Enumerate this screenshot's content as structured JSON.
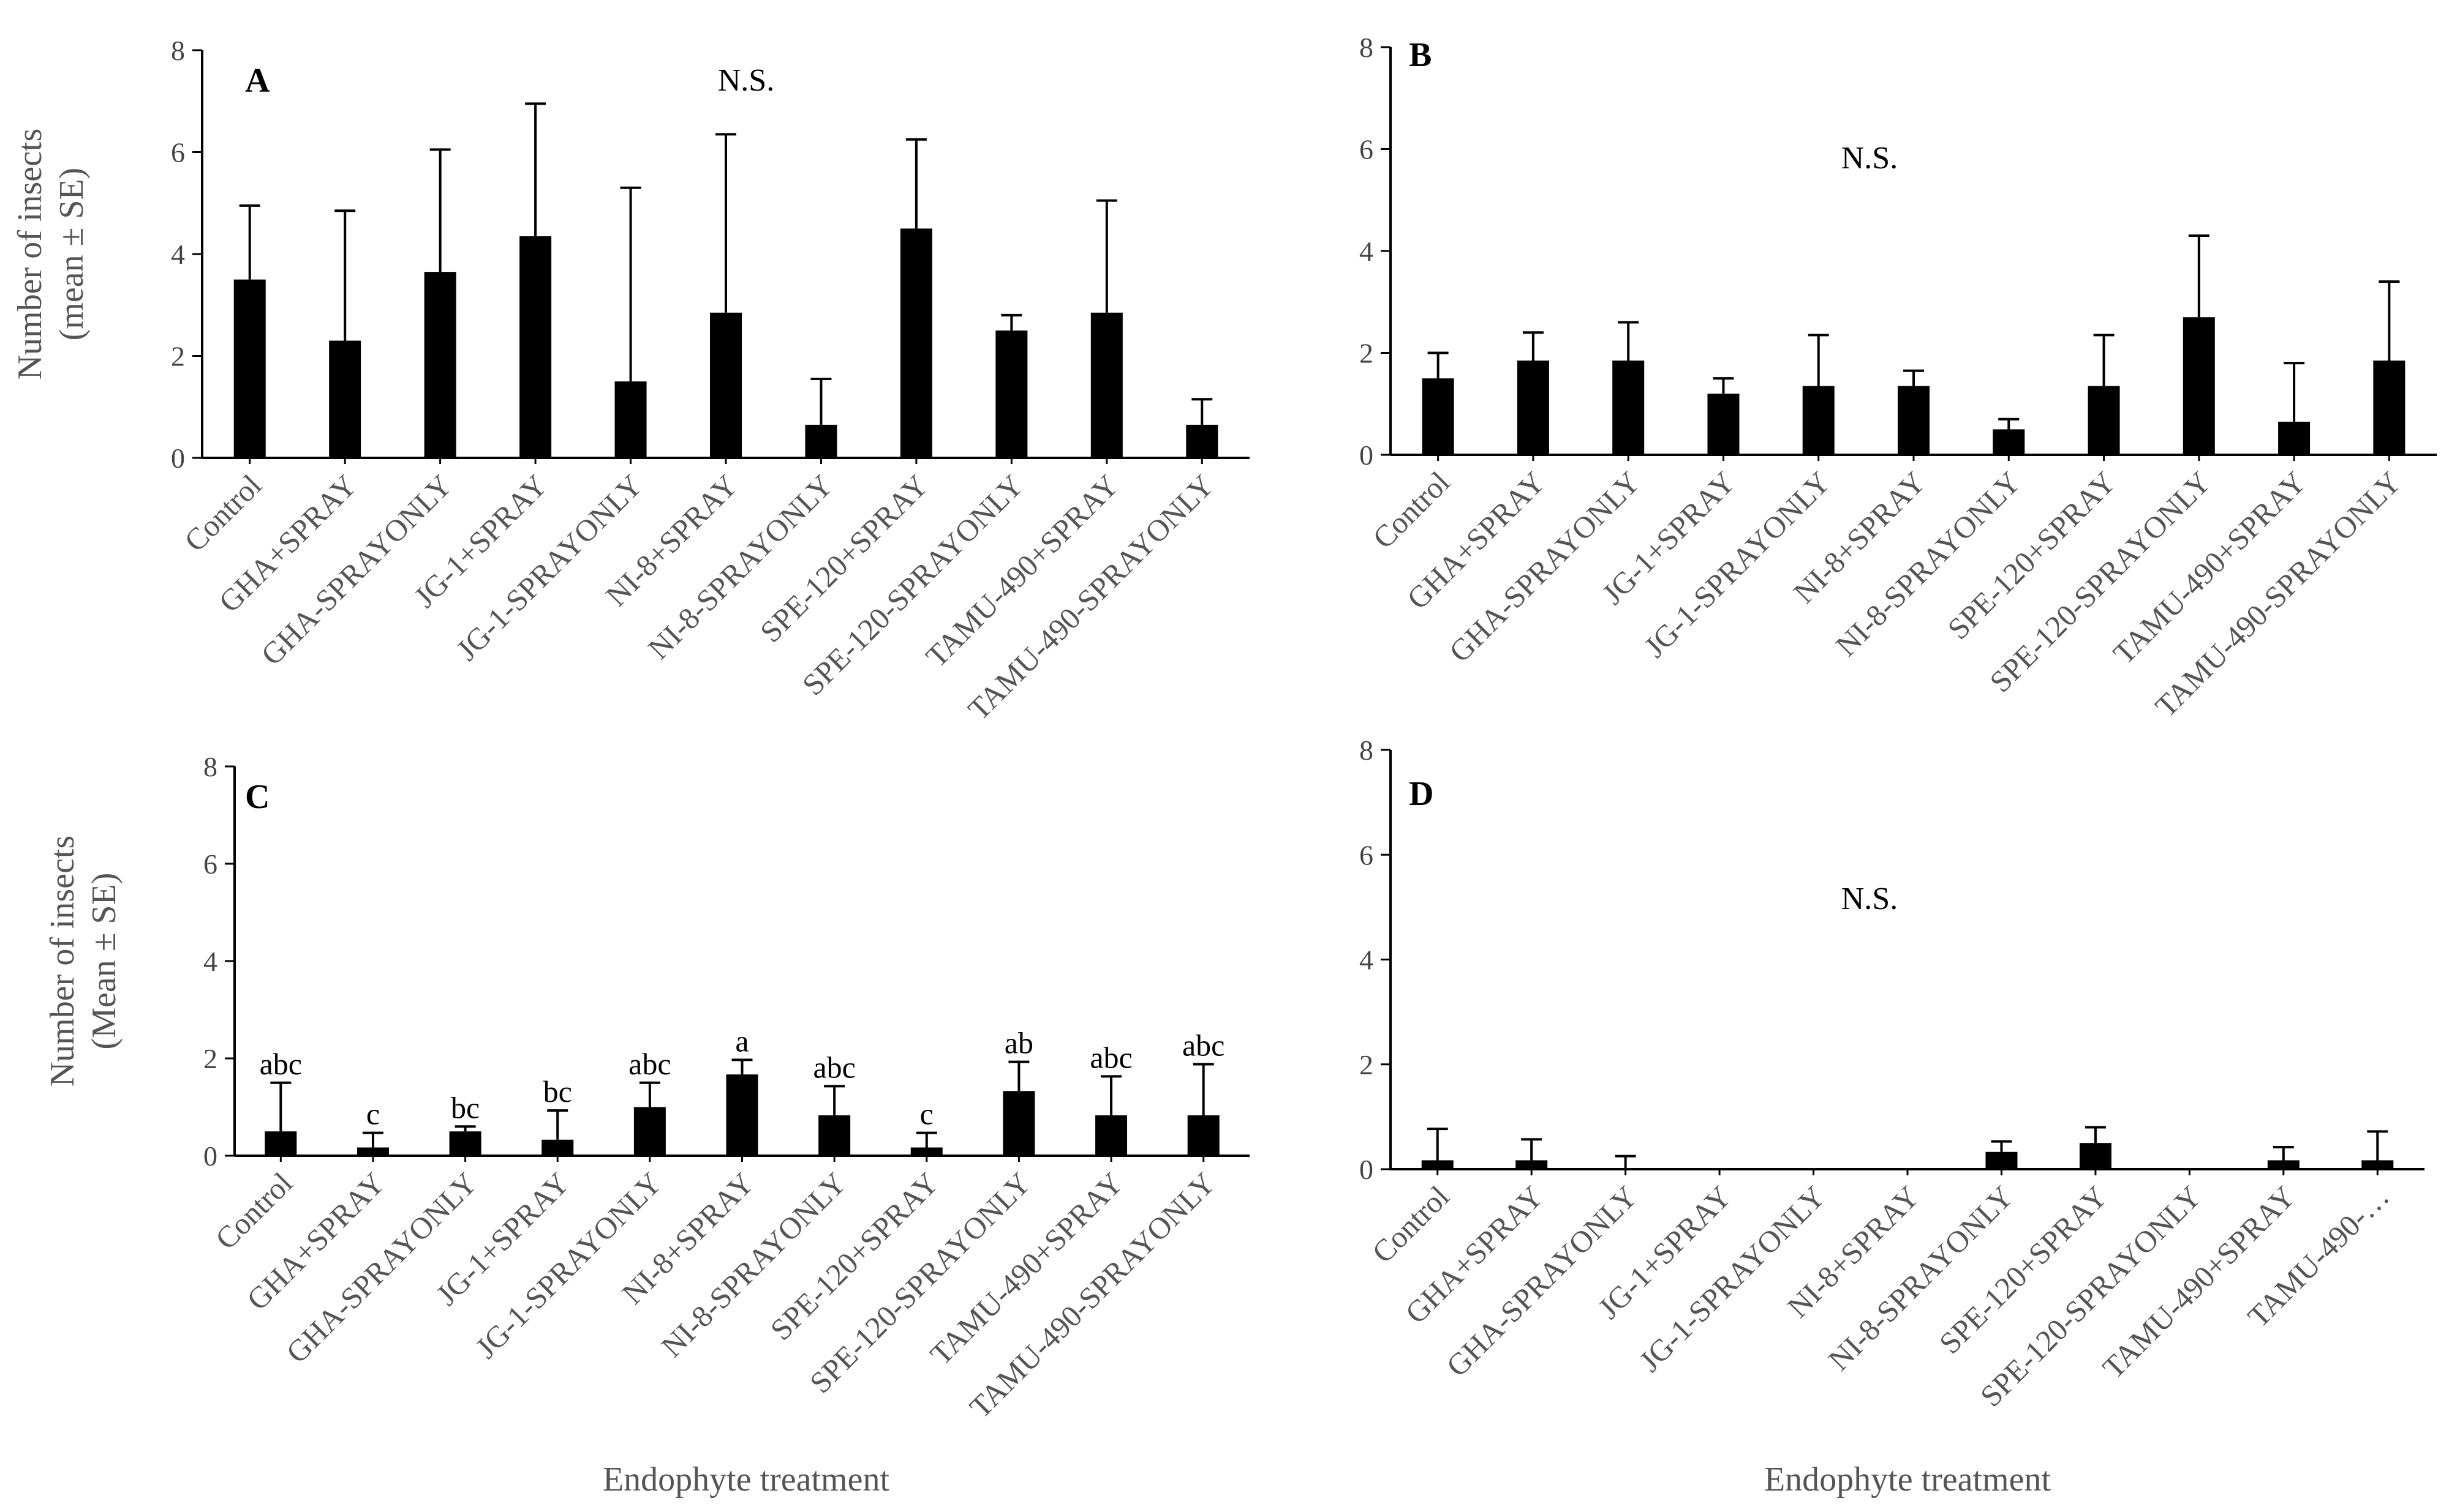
{
  "figure": {
    "panel_labels": [
      "A",
      "B",
      "C",
      "D"
    ]
  },
  "chart_data": [
    {
      "id": "A",
      "type": "bar",
      "title": "",
      "annotation": "N.S.",
      "xlabel": "",
      "ylabel": [
        "Number of insects",
        "(mean ± SE)"
      ],
      "ylim": [
        0,
        8
      ],
      "yticks": [
        0,
        2,
        4,
        6,
        8
      ],
      "categories": [
        "Control",
        "GHA+SPRAY",
        "GHA-SPRAYONLY",
        "JG-1+SPRAY",
        "JG-1-SPRAYONLY",
        "NI-8+SPRAY",
        "NI-8-SPRAYONLY",
        "SPE-120+SPRAY",
        "SPE-120-SPRAYONLY",
        "TAMU-490+SPRAY",
        "TAMU-490-SPRAYONLY"
      ],
      "values": [
        3.5,
        2.3,
        3.65,
        4.35,
        1.5,
        2.85,
        0.65,
        4.5,
        2.5,
        2.85,
        0.65
      ],
      "errors": [
        1.45,
        2.55,
        2.4,
        2.6,
        3.8,
        3.5,
        0.9,
        1.75,
        0.3,
        2.2,
        0.5
      ],
      "letters": []
    },
    {
      "id": "B",
      "type": "bar",
      "title": "",
      "annotation": "N.S.",
      "xlabel": "",
      "ylabel": [],
      "ylim": [
        0,
        8
      ],
      "yticks": [
        0,
        2,
        4,
        6,
        8
      ],
      "categories": [
        "Control",
        "GHA+SPRAY",
        "GHA-SPRAYONLY",
        "JG-1+SPRAY",
        "JG-1-SPRAYONLY",
        "NI-8+SPRAY",
        "NI-8-SPRAYONLY",
        "SPE-120+SPRAY",
        "SPE-120-SPRAYONLY",
        "TAMU-490+SPRAY",
        "TAMU-490-SPRAYONLY"
      ],
      "values": [
        1.5,
        1.85,
        1.85,
        1.2,
        1.35,
        1.35,
        0.5,
        1.35,
        2.7,
        0.65,
        1.85
      ],
      "errors": [
        0.5,
        0.55,
        0.75,
        0.3,
        1.0,
        0.3,
        0.2,
        1.0,
        1.6,
        1.15,
        1.55
      ],
      "letters": []
    },
    {
      "id": "C",
      "type": "bar",
      "title": "",
      "annotation": "",
      "xlabel": "Endophyte treatment",
      "ylabel": [
        "Number of insects",
        "(Mean ± SE)"
      ],
      "ylim": [
        0,
        8
      ],
      "yticks": [
        0,
        2,
        4,
        6,
        8
      ],
      "categories": [
        "Control",
        "GHA+SPRAY",
        "GHA-SPRAYONLY",
        "JG-1+SPRAY",
        "JG-1-SPRAYONLY",
        "NI-8+SPRAY",
        "NI-8-SPRAYONLY",
        "SPE-120+SPRAY",
        "SPE-120-SPRAYONLY",
        "TAMU-490+SPRAY",
        "TAMU-490-SPRAYONLY"
      ],
      "values": [
        0.5,
        0.17,
        0.5,
        0.33,
        1.0,
        1.67,
        0.83,
        0.17,
        1.33,
        0.83,
        0.83
      ],
      "errors": [
        1.0,
        0.3,
        0.1,
        0.6,
        0.5,
        0.3,
        0.6,
        0.3,
        0.6,
        0.8,
        1.05
      ],
      "letters": [
        "abc",
        "c",
        "bc",
        "bc",
        "abc",
        "a",
        "abc",
        "c",
        "ab",
        "abc",
        "abc"
      ]
    },
    {
      "id": "D",
      "type": "bar",
      "title": "",
      "annotation": "N.S.",
      "xlabel": "Endophyte treatment",
      "ylabel": [],
      "ylim": [
        0,
        8
      ],
      "yticks": [
        0,
        2,
        4,
        6,
        8
      ],
      "categories": [
        "Control",
        "GHA+SPRAY",
        "GHA-SPRAYONLY",
        "JG-1+SPRAY",
        "JG-1-SPRAYONLY",
        "NI-8+SPRAY",
        "NI-8-SPRAYONLY",
        "SPE-120+SPRAY",
        "SPE-120-SPRAYONLY",
        "TAMU-490+SPRAY",
        "TAMU-490-…"
      ],
      "values": [
        0.17,
        0.17,
        0,
        0,
        0,
        0,
        0.33,
        0.5,
        0,
        0.17,
        0.17
      ],
      "errors": [
        0.6,
        0.4,
        0.25,
        0,
        0,
        0,
        0.2,
        0.3,
        0,
        0.25,
        0.55
      ],
      "letters": []
    }
  ]
}
